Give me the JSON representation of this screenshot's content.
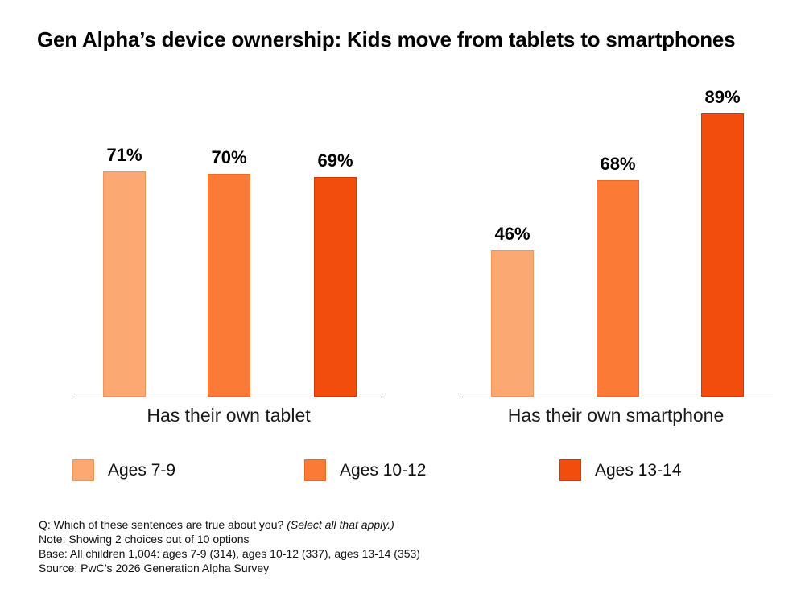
{
  "title": "Gen Alpha’s device ownership: Kids move from tablets to smartphones",
  "chart_data": {
    "type": "bar",
    "title": "Gen Alpha’s device ownership: Kids move from tablets to smartphones",
    "categories": [
      "Has their own tablet",
      "Has their own smartphone"
    ],
    "series": [
      {
        "name": "Ages 7-9",
        "color": "#FBA873",
        "border_color": "#F0945B",
        "values": [
          71,
          46
        ]
      },
      {
        "name": "Ages 10-12",
        "color": "#FB7B36",
        "border_color": "#E96A22",
        "values": [
          70,
          68
        ]
      },
      {
        "name": "Ages 13-14",
        "color": "#F24D0D",
        "border_color": "#CC3D03",
        "values": [
          69,
          89
        ]
      }
    ],
    "value_suffix": "%",
    "ylim": [
      0,
      100
    ],
    "grid": false,
    "y_axis_shown": false,
    "legend_position": "bottom",
    "data_labels_shown": true
  },
  "footnotes": {
    "question": "Q: Which of these sentences are true about you? ",
    "question_italic": "(Select all that apply.)",
    "note": "Note: Showing 2 choices out of 10 options",
    "base": "Base: All children 1,004: ages 7-9 (314), ages 10-12 (337), ages 13-14 (353)",
    "source": "Source: PwC’s 2026 Generation Alpha Survey"
  }
}
